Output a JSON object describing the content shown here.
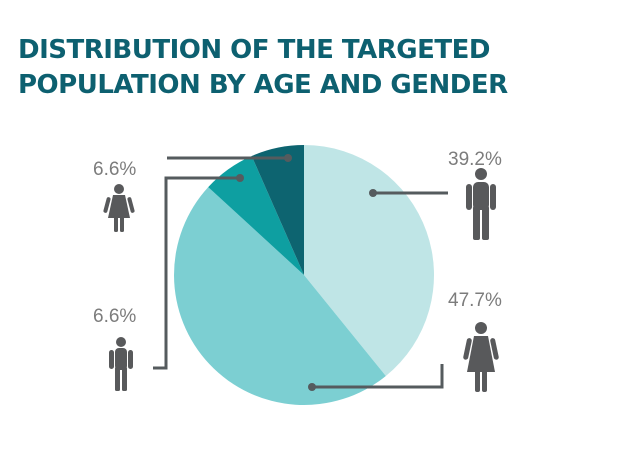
{
  "title_lines": [
    "DISTRIBUTION OF THE TARGETED",
    "POPULATION BY AGE AND GENDER"
  ],
  "colors": {
    "title": "#0d6070",
    "leader": "#555b5e",
    "icon": "#58595b",
    "label": "#7c7c7c"
  },
  "chart_data": {
    "type": "pie",
    "title": "DISTRIBUTION OF THE TARGETED POPULATION BY AGE AND GENDER",
    "start_angle_deg": 0,
    "direction": "clockwise",
    "slices": [
      {
        "id": "man",
        "value": 39.2,
        "label": "39.2%",
        "color": "#bfe5e6",
        "icon": "man-icon"
      },
      {
        "id": "woman",
        "value": 47.7,
        "label": "47.7%",
        "color": "#7ccfd2",
        "icon": "woman-icon"
      },
      {
        "id": "boy",
        "value": 6.6,
        "label": "6.6%",
        "color": "#0e9fa1",
        "icon": "boy-icon"
      },
      {
        "id": "girl",
        "value": 6.6,
        "label": "6.6%",
        "color": "#0d6470",
        "icon": "girl-icon"
      }
    ]
  }
}
